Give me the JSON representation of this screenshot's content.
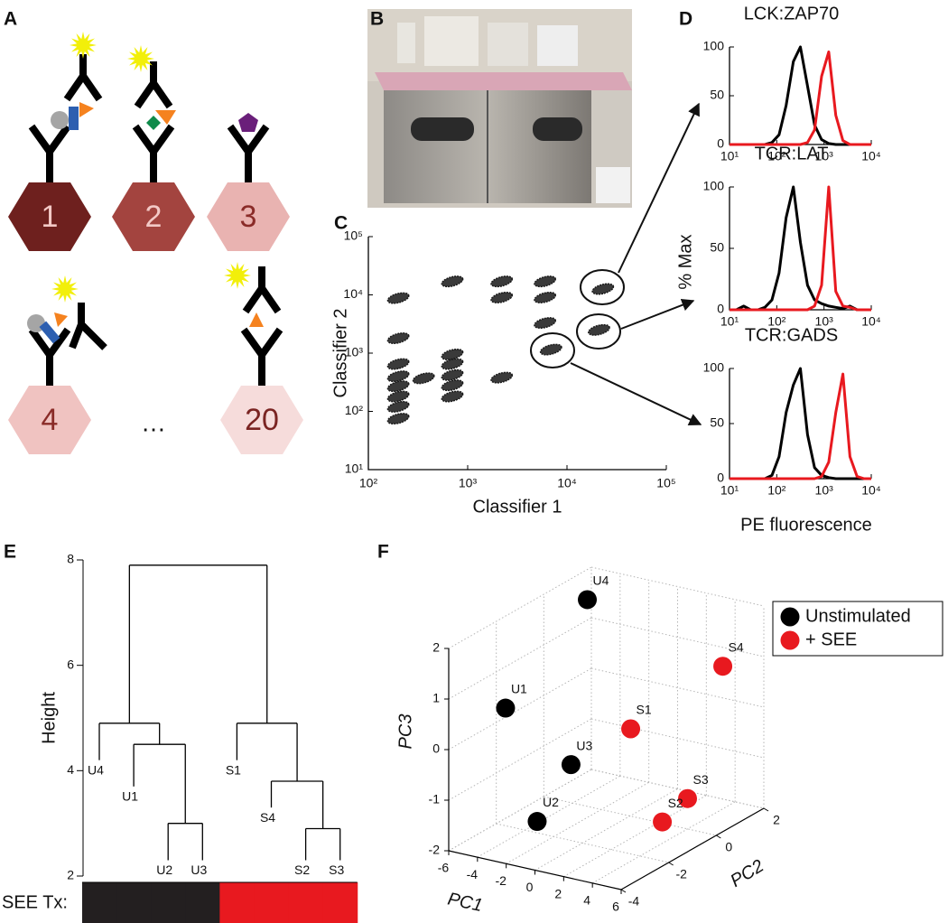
{
  "panel_labels": [
    "A",
    "B",
    "C",
    "D",
    "E",
    "F"
  ],
  "panel_a": {
    "beads": [
      {
        "label": "1",
        "color": "#6e201e",
        "text_color": "#f3c9c6"
      },
      {
        "label": "2",
        "color": "#a3443f",
        "text_color": "#f3c9c6"
      },
      {
        "label": "3",
        "color": "#e9b3b1",
        "text_color": "#8a2b28"
      },
      {
        "label": "4",
        "color": "#f0c3c1",
        "text_color": "#8a2b28"
      },
      {
        "label": "20",
        "color": "#f6dcdb",
        "text_color": "#7a2422"
      }
    ],
    "ellipsis": "…"
  },
  "chart_data": [
    {
      "type": "scatter",
      "xlabel": "Classifier 1",
      "ylabel": "Classifier 2",
      "color": "#1a1a1a",
      "xlog": true,
      "ylog": true,
      "xlim": [
        100,
        100000
      ],
      "ylim": [
        10,
        100000
      ],
      "xticks": [
        {
          "value": 100,
          "label": "10²"
        },
        {
          "value": 1000,
          "label": "10³"
        },
        {
          "value": 10000,
          "label": "10⁴"
        },
        {
          "value": 100000,
          "label": "10⁵"
        }
      ],
      "yticks": [
        {
          "value": 10,
          "label": "10¹"
        },
        {
          "value": 100,
          "label": "10²"
        },
        {
          "value": 1000,
          "label": "10³"
        },
        {
          "value": 10000,
          "label": "10⁴"
        },
        {
          "value": 100000,
          "label": "10⁵"
        }
      ],
      "x": [
        200,
        200,
        200,
        200,
        200,
        200,
        200,
        200,
        360,
        700,
        700,
        700,
        700,
        700,
        700,
        2200,
        2200,
        2200,
        6000,
        6000,
        6000,
        6900,
        23000,
        21000
      ],
      "values": [
        8800,
        1800,
        650,
        400,
        270,
        180,
        120,
        75,
        370,
        17000,
        950,
        650,
        420,
        280,
        180,
        17000,
        9000,
        380,
        17000,
        9000,
        3300,
        1150,
        12600,
        2500
      ]
    },
    {
      "type": "line",
      "title": "LCK:ZAP70",
      "xlog": true,
      "xlim": [
        10,
        10000
      ],
      "ylim": [
        0,
        100
      ],
      "xticks": [
        {
          "value": 10,
          "label": "10¹"
        },
        {
          "value": 100,
          "label": "10²"
        },
        {
          "value": 1000,
          "label": "10³"
        },
        {
          "value": 10000,
          "label": "10⁴"
        }
      ],
      "yticks": [
        0,
        50,
        100
      ],
      "x": [
        10,
        14,
        20,
        28,
        40,
        56,
        79,
        112,
        158,
        224,
        316,
        447,
        631,
        891,
        1259,
        1778,
        2512,
        3548,
        5012,
        7079,
        10000
      ],
      "series": [
        {
          "color": "#000000",
          "values": [
            0,
            0,
            0,
            0,
            0,
            0,
            2,
            10,
            40,
            85,
            100,
            60,
            20,
            5,
            1,
            0,
            0,
            0,
            0,
            0,
            0
          ]
        },
        {
          "color": "#e8191f",
          "values": [
            0,
            0,
            0,
            0,
            0,
            0,
            0,
            0,
            0,
            0,
            0,
            2,
            15,
            70,
            95,
            30,
            4,
            0,
            0,
            0,
            0
          ]
        }
      ]
    },
    {
      "type": "line",
      "title": "TCR:LAT",
      "ylabel": "% Max",
      "xlog": true,
      "xlim": [
        10,
        10000
      ],
      "ylim": [
        0,
        100
      ],
      "xticks": [
        {
          "value": 10,
          "label": "10¹"
        },
        {
          "value": 100,
          "label": "10²"
        },
        {
          "value": 1000,
          "label": "10³"
        },
        {
          "value": 10000,
          "label": "10⁴"
        }
      ],
      "yticks": [
        0,
        50,
        100
      ],
      "x": [
        10,
        14,
        20,
        28,
        40,
        56,
        79,
        112,
        158,
        224,
        316,
        447,
        631,
        891,
        1259,
        1778,
        2512,
        3548,
        5012,
        7079,
        10000
      ],
      "series": [
        {
          "color": "#000000",
          "values": [
            0,
            0,
            3,
            0,
            0,
            2,
            8,
            30,
            75,
            100,
            55,
            20,
            8,
            5,
            3,
            2,
            1,
            3,
            0,
            0,
            0
          ]
        },
        {
          "color": "#e8191f",
          "values": [
            0,
            0,
            0,
            0,
            0,
            0,
            0,
            0,
            0,
            0,
            0,
            0,
            3,
            20,
            100,
            15,
            3,
            2,
            0,
            0,
            0
          ]
        }
      ]
    },
    {
      "type": "line",
      "title": "TCR:GADS",
      "xlabel": "PE fluorescence",
      "xlog": true,
      "xlim": [
        10,
        10000
      ],
      "ylim": [
        0,
        100
      ],
      "xticks": [
        {
          "value": 10,
          "label": "10¹"
        },
        {
          "value": 100,
          "label": "10²"
        },
        {
          "value": 1000,
          "label": "10³"
        },
        {
          "value": 10000,
          "label": "10⁴"
        }
      ],
      "yticks": [
        0,
        50,
        100
      ],
      "x": [
        10,
        14,
        20,
        28,
        40,
        56,
        79,
        112,
        158,
        224,
        316,
        447,
        631,
        891,
        1259,
        1778,
        2512,
        3548,
        5012,
        7079,
        10000
      ],
      "series": [
        {
          "color": "#000000",
          "values": [
            0,
            0,
            0,
            0,
            0,
            0,
            3,
            20,
            60,
            85,
            100,
            40,
            10,
            3,
            1,
            0,
            0,
            0,
            0,
            0,
            0
          ]
        },
        {
          "color": "#e8191f",
          "values": [
            0,
            0,
            0,
            0,
            0,
            0,
            0,
            0,
            0,
            0,
            0,
            0,
            0,
            2,
            15,
            60,
            95,
            20,
            2,
            0,
            0
          ]
        }
      ]
    },
    {
      "type": "dendrogram",
      "ylabel": "Height",
      "ylim": [
        2,
        8
      ],
      "yticks": [
        2,
        4,
        6,
        8
      ],
      "bar_label": "SEE Tx:",
      "leaves": [
        {
          "label": "U4",
          "height": 4.2,
          "color": "#231f20"
        },
        {
          "label": "U1",
          "height": 3.7,
          "color": "#231f20"
        },
        {
          "label": "U2",
          "height": 2.3,
          "color": "#231f20"
        },
        {
          "label": "U3",
          "height": 2.3,
          "color": "#231f20"
        },
        {
          "label": "S1",
          "height": 4.2,
          "color": "#e8191f"
        },
        {
          "label": "S4",
          "height": 3.3,
          "color": "#e8191f"
        },
        {
          "label": "S2",
          "height": 2.3,
          "color": "#e8191f"
        },
        {
          "label": "S3",
          "height": 2.3,
          "color": "#e8191f"
        }
      ],
      "merges": [
        {
          "children": [
            2,
            3
          ],
          "height": 3.0
        },
        {
          "children": [
            1,
            8
          ],
          "height": 4.5
        },
        {
          "children": [
            0,
            9
          ],
          "height": 4.9
        },
        {
          "children": [
            6,
            7
          ],
          "height": 2.9
        },
        {
          "children": [
            5,
            11
          ],
          "height": 3.8
        },
        {
          "children": [
            4,
            12
          ],
          "height": 4.9
        },
        {
          "children": [
            10,
            13
          ],
          "height": 7.9
        }
      ]
    },
    {
      "type": "scatter3d",
      "xlabel": "PC1",
      "ylabel": "PC2",
      "zlabel": "PC3",
      "xlim": [
        -6,
        6
      ],
      "ylim": [
        -4,
        2
      ],
      "zlim": [
        -2,
        2
      ],
      "xticks": [
        -6,
        -4,
        -2,
        0,
        2,
        4,
        6
      ],
      "yticks": [
        -4,
        -2,
        0,
        2
      ],
      "zticks": [
        -2,
        -1,
        0,
        1,
        2
      ],
      "grid": true,
      "legend": "upper right",
      "series": [
        {
          "name": "Unstimulated",
          "color": "#000000",
          "labels": [
            "U4",
            "U1",
            "U3",
            "U2"
          ],
          "x": [
            -3.8,
            -3.7,
            -0.8,
            -1.5
          ],
          "y": [
            0.5,
            -3,
            -2,
            -3
          ],
          "z": [
            1.9,
            0.7,
            -0.5,
            -1.4
          ]
        },
        {
          "name": "+ SEE",
          "color": "#e8191f",
          "labels": [
            "S4",
            "S1",
            "S3",
            "S2"
          ],
          "x": [
            4.8,
            1.7,
            4.0,
            3.9
          ],
          "y": [
            1,
            -1,
            0,
            -1
          ],
          "z": [
            1.0,
            0.1,
            -1.4,
            -1.6
          ]
        }
      ]
    }
  ]
}
